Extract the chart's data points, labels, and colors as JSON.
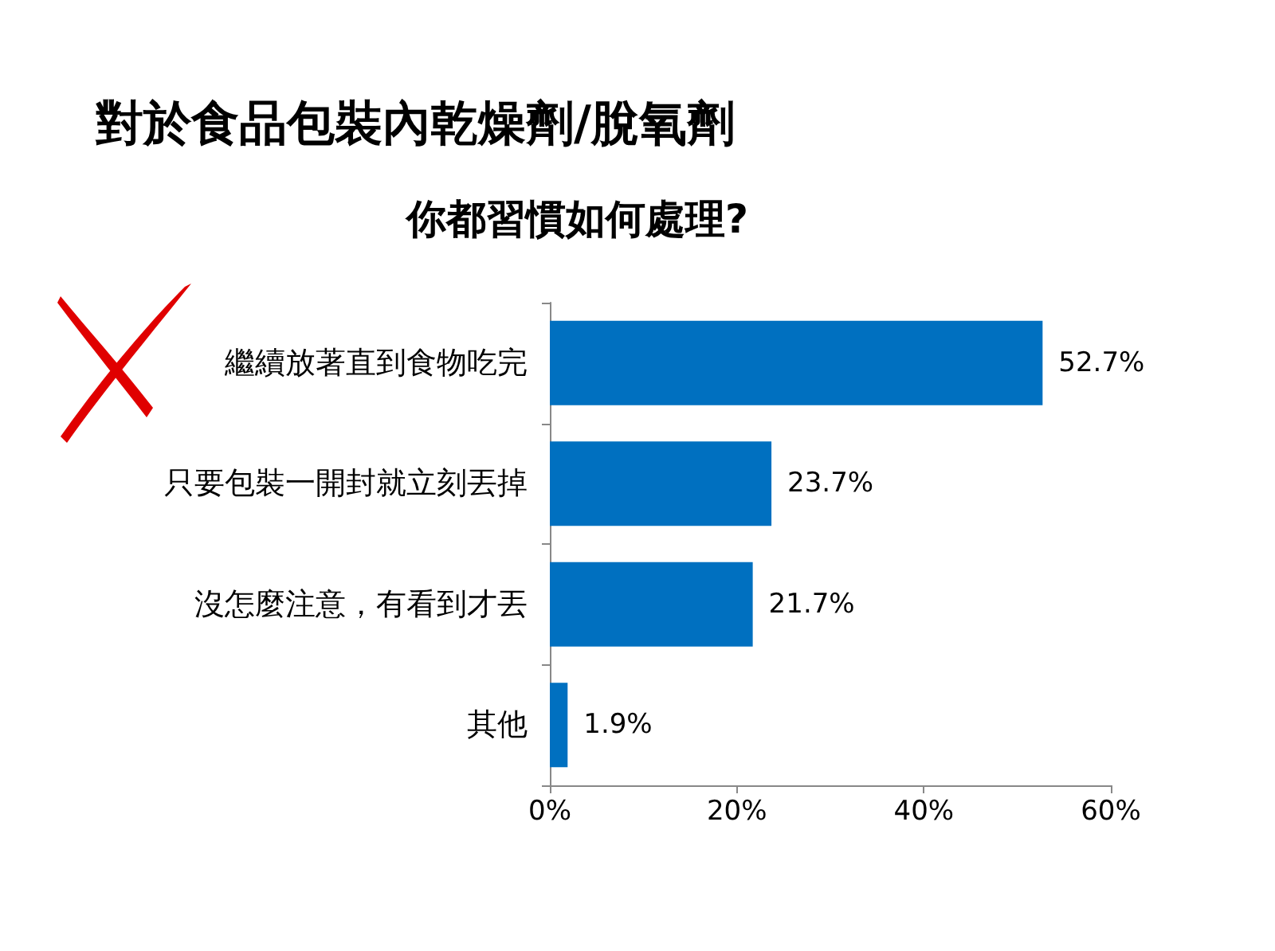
{
  "chart_data": {
    "type": "bar",
    "orientation": "horizontal",
    "title": "對於食品包裝內乾燥劑/脫氧劑",
    "subtitle": "你都習慣如何處理?",
    "categories": [
      "繼續放著直到食物吃完",
      "只要包裝一開封就立刻丟掉",
      "沒怎麼注意，有看到才丟",
      "其他"
    ],
    "values": [
      52.7,
      23.7,
      21.7,
      1.9
    ],
    "value_labels": [
      "52.7%",
      "23.7%",
      "21.7%",
      "1.9%"
    ],
    "color": "#0070c0",
    "xlim": [
      0,
      60
    ],
    "xticks": [
      {
        "value": 0,
        "label": "0%"
      },
      {
        "value": 20,
        "label": "20%"
      },
      {
        "value": 40,
        "label": "40%"
      },
      {
        "value": 60,
        "label": "60%"
      }
    ],
    "grid": false
  }
}
